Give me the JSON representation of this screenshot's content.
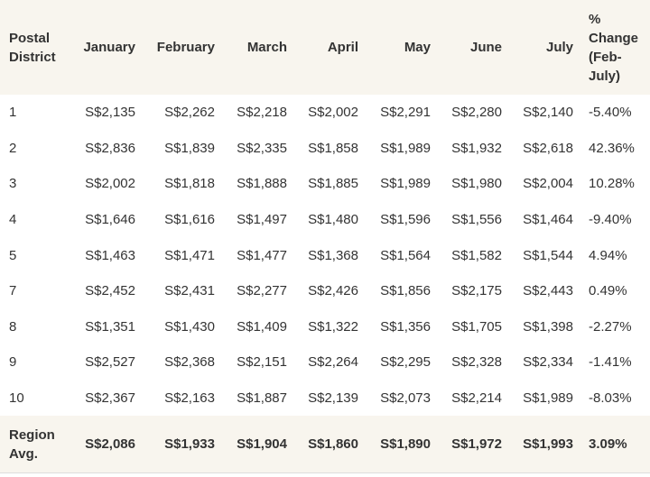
{
  "table": {
    "header": [
      "Postal District",
      "January",
      "February",
      "March",
      "April",
      "May",
      "June",
      "July",
      "% Change (Feb-July)"
    ],
    "rows": [
      [
        "1",
        "S$2,135",
        "S$2,262",
        "S$2,218",
        "S$2,002",
        "S$2,291",
        "S$2,280",
        "S$2,140",
        "-5.40%"
      ],
      [
        "2",
        "S$2,836",
        "S$1,839",
        "S$2,335",
        "S$1,858",
        "S$1,989",
        "S$1,932",
        "S$2,618",
        "42.36%"
      ],
      [
        "3",
        "S$2,002",
        "S$1,818",
        "S$1,888",
        "S$1,885",
        "S$1,989",
        "S$1,980",
        "S$2,004",
        "10.28%"
      ],
      [
        "4",
        "S$1,646",
        "S$1,616",
        "S$1,497",
        "S$1,480",
        "S$1,596",
        "S$1,556",
        "S$1,464",
        "-9.40%"
      ],
      [
        "5",
        "S$1,463",
        "S$1,471",
        "S$1,477",
        "S$1,368",
        "S$1,564",
        "S$1,582",
        "S$1,544",
        "4.94%"
      ],
      [
        "7",
        "S$2,452",
        "S$2,431",
        "S$2,277",
        "S$2,426",
        "S$1,856",
        "S$2,175",
        "S$2,443",
        "0.49%"
      ],
      [
        "8",
        "S$1,351",
        "S$1,430",
        "S$1,409",
        "S$1,322",
        "S$1,356",
        "S$1,705",
        "S$1,398",
        "-2.27%"
      ],
      [
        "9",
        "S$2,527",
        "S$2,368",
        "S$2,151",
        "S$2,264",
        "S$2,295",
        "S$2,328",
        "S$2,334",
        "-1.41%"
      ],
      [
        "10",
        "S$2,367",
        "S$2,163",
        "S$1,887",
        "S$2,139",
        "S$2,073",
        "S$2,214",
        "S$1,989",
        "-8.03%"
      ]
    ],
    "footer": [
      "Region Avg.",
      "S$2,086",
      "S$1,933",
      "S$1,904",
      "S$1,860",
      "S$1,890",
      "S$1,972",
      "S$1,993",
      "3.09%"
    ]
  }
}
